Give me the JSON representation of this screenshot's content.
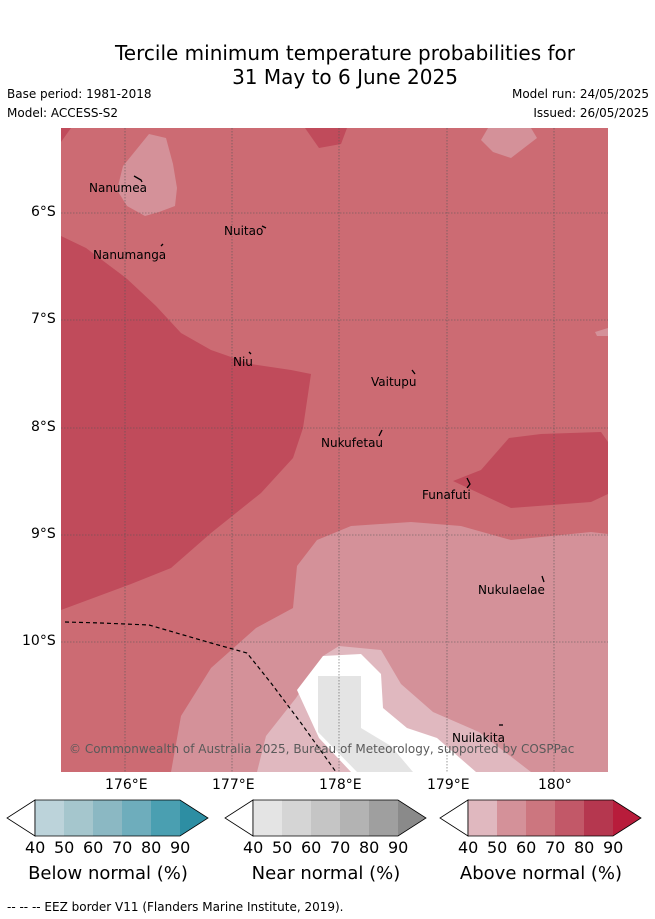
{
  "title_line1": "Tercile minimum temperature probabilities for",
  "title_line2": "31 May to 6 June 2025",
  "base_period": "Base period: 1981-2018",
  "model": "Model: ACCESS-S2",
  "model_run": "Model run: 24/05/2025",
  "issued": "Issued: 26/05/2025",
  "lat_labels": [
    "6°S",
    "7°S",
    "8°S",
    "9°S",
    "10°S"
  ],
  "lon_labels": [
    "176°E",
    "177°E",
    "178°E",
    "179°E",
    "180°"
  ],
  "places": {
    "nanumea": "Nanumea",
    "nuitao": "Nuitao",
    "nanumanga": "Nanumanga",
    "niu": "Niu",
    "vaitupu": "Vaitupu",
    "nukufetau": "Nukufetau",
    "funafuti": "Funafuti",
    "nukulaelae": "Nukulaelae",
    "nuilakita": "Nuilakita"
  },
  "credit": "© Commonwealth of Australia 2025, Bureau of Meteorology, supported by COSPPac",
  "colorbars": [
    {
      "title": "Below normal (%)",
      "ticks": [
        "40",
        "50",
        "60",
        "70",
        "80",
        "90"
      ],
      "colors": [
        "#bcd3da",
        "#a5c6cd",
        "#8bb8c3",
        "#6eadbc",
        "#4a9fb1",
        "#2d8ea3"
      ]
    },
    {
      "title": "Near normal (%)",
      "ticks": [
        "40",
        "50",
        "60",
        "70",
        "80",
        "90"
      ],
      "colors": [
        "#e4e4e4",
        "#d5d5d5",
        "#c5c5c5",
        "#b3b3b3",
        "#9f9f9f",
        "#8a8a8a"
      ]
    },
    {
      "title": "Above normal (%)",
      "ticks": [
        "40",
        "50",
        "60",
        "70",
        "80",
        "90"
      ],
      "colors": [
        "#e0b8bf",
        "#d49199",
        "#cc767f",
        "#c25868",
        "#b5374f",
        "#b81c3b"
      ]
    }
  ],
  "footer": "--  --  -- EEZ border V11 (Flanders Marine Institute, 2019)."
}
